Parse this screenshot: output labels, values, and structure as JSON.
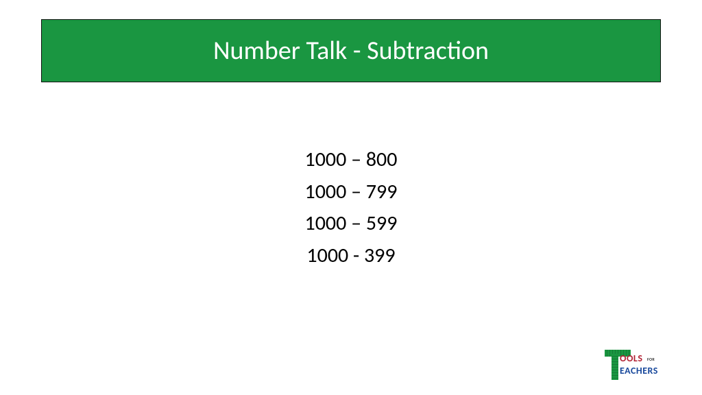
{
  "slide": {
    "title": "Number Talk - Subtraction",
    "title_bg": "#1a9641",
    "title_color": "#ffffff",
    "title_border": "#111111",
    "title_fontsize": 38,
    "problems": [
      "1000 – 800",
      "1000 – 799",
      "1000 – 599",
      "1000 - 399"
    ],
    "problem_fontsize": 30,
    "problem_color": "#000000",
    "background": "#ffffff"
  },
  "logo": {
    "line1": "OOLS",
    "for": "FOR",
    "line2": "EACHERS",
    "ruler_color": "#1a9641",
    "tools_color": "#b22234",
    "teachers_color": "#19499c"
  }
}
